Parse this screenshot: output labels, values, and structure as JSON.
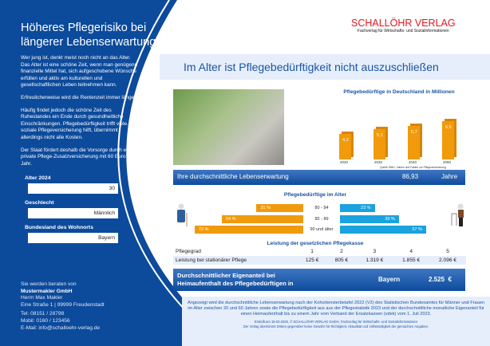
{
  "left": {
    "title": "Höheres Pflegerisiko bei längerer Lebenserwartung",
    "paragraphs": [
      "Wer jung ist, denkt meist noch nicht an das Alter. Das Alter ist eine schöne Zeit, wenn man genügend finanzielle Mittel hat, sich aufgeschobene Wünsche erfüllen und aktiv am kulturellen und gesellschaftlichen Leben teilnehmen kann.",
      "Erfreulicherweise wird die Rentenzeit immer länger.",
      "Häufig findet jedoch die schöne Zeit des Ruhestandes ein Ende durch gesundheitliche Einschränkungen. Pflegebedürftigkeit trifft viele. Die soziale Pflegeversicherung hilft, übernimmt allerdings nicht alle Kosten.",
      "Der Staat fördert deshalb die Vorsorge durch eine private Pflege-Zusatzversicherung mit 60 Euro im Jahr."
    ],
    "fields": [
      {
        "label": "Alter 2024",
        "value": "30"
      },
      {
        "label": "Geschlecht",
        "value": "Männlich"
      },
      {
        "label": "Bundesland des Wohnorts",
        "value": "Bayern"
      }
    ],
    "contact": {
      "intro": "Sie werden beraten von",
      "company": "Mustermakler GmbH",
      "person": "Herrn Max Makler",
      "address": "Eine Straße 1 | 99999 Freudenstadt",
      "tel": "Tel:  08151 / 28798",
      "mobil": "Mobil:  0160 / 123456",
      "email": "E-Mail:  info@schalloehr-verlag.de"
    }
  },
  "logo": {
    "name": "SCHALLÖHR VERLAG",
    "subtitle": "Fachverlag für Wirtschafts- und Sozialinformationen"
  },
  "header": {
    "title": "Im Alter ist Pflegebedürftigkeit nicht auszuschließen"
  },
  "chart_data": [
    {
      "type": "bar",
      "title": "Pflegebedürftige in Deutschland in Millionen",
      "categories": [
        "2020",
        "2030",
        "2040",
        "2050"
      ],
      "values": [
        4.3,
        5.1,
        5.7,
        6.5
      ],
      "labels": [
        "4,3",
        "5,1",
        "5,7",
        "6,5"
      ],
      "source": "Quelle: BMG, Zahlen und Fakten zur Pflegeversicherung"
    },
    {
      "type": "bar",
      "title": "Pflegebedürftige im Alter",
      "categories": [
        "80 - 84",
        "85 - 89",
        "90 und älter"
      ],
      "series": [
        {
          "color": "#f09a0c",
          "values": [
            31,
            54,
            72
          ],
          "labels": [
            "31 %",
            "54 %",
            "72 %"
          ]
        },
        {
          "color": "#1aa3de",
          "values": [
            23,
            39,
            57
          ],
          "labels": [
            "23 %",
            "39 %",
            "57 %"
          ]
        }
      ]
    }
  ],
  "life": {
    "label": "Ihre durchschnittliche Lebenserwartung",
    "value": "86,93",
    "unit": "Jahre"
  },
  "table": {
    "title": "Leistung der gesetzlichen Pflegekasse",
    "header": [
      "Pflegegrad",
      "1",
      "2",
      "3",
      "4",
      "5"
    ],
    "row": [
      "Leistung bei stationärer Pflege",
      "125 €",
      "805 €",
      "1.319 €",
      "1.855 €",
      "2.096 €"
    ]
  },
  "eigen": {
    "label1": "Durchschnittlicher Eigenanteil bei",
    "label2": "Heimaufenthalt des Pflegebedürftigen in",
    "state": "Bayern",
    "value": "2.525  €"
  },
  "footer": {
    "text": "Angezeigt wird die durchschnittliche Lebenserwartung nach der Kohortensterbetafel 2022 (V2) des Statistischen Bundesamtes für Männer und Frauen im Alter zwischen 20 und 60 Jahren sowie die Pflegebedürftigkeit aus aus der Pflegestatistik 2023 und der durchschnittliche monatliche Eigenanteil für einen Heimaufenthalt bis zu einem Jahr vom Verband der Ersatzkassen (vdek) vom 1. Juli 2023.",
    "created": "Erstellt am 18.03.2025, © SCHALLÖHR VERLAG GmbH, Fachverlag für Wirtschafts- und Sozialinformationen",
    "disclaimer": "Der Verlag übernimmt Dritten gegenüber keine Gewähr für Richtigkeit, Aktualität und Vollständigkeit der gemachten Angaben."
  }
}
